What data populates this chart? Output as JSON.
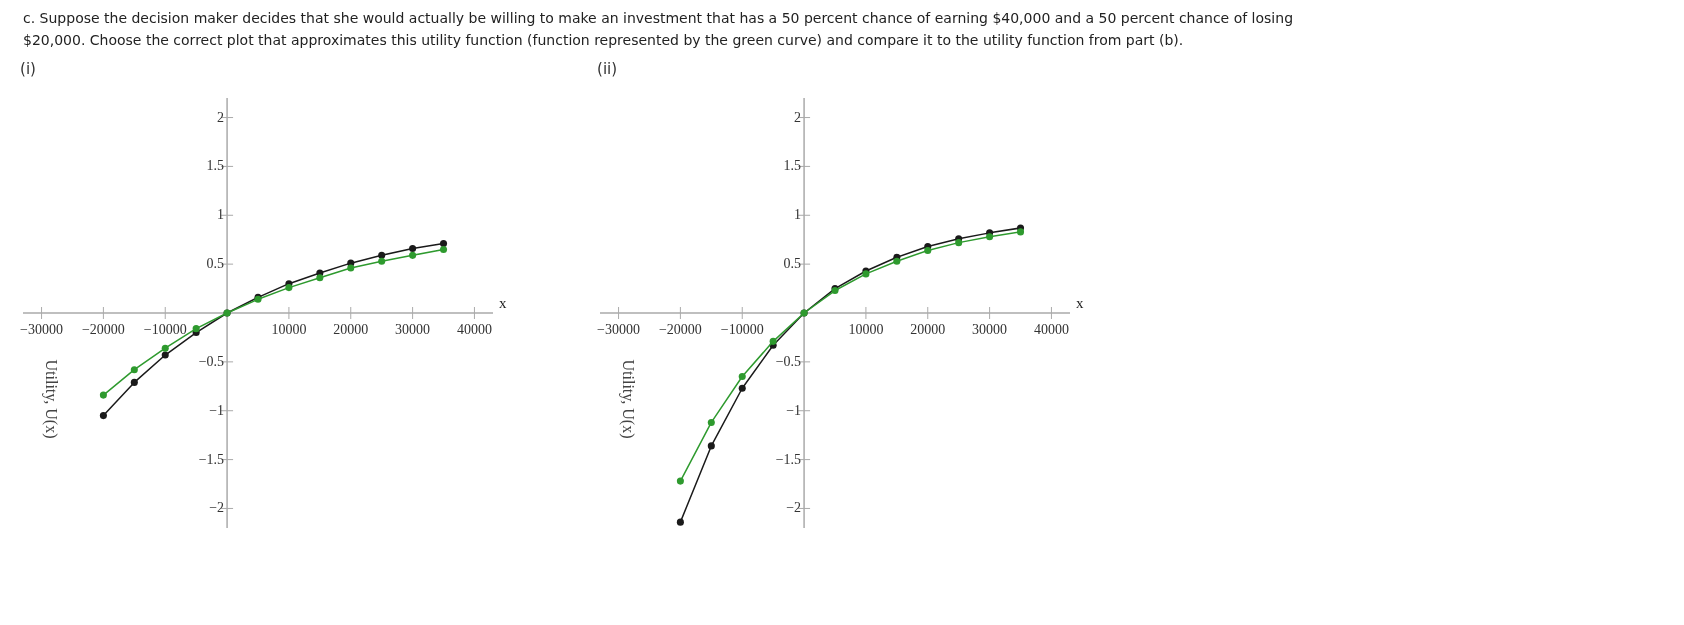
{
  "chart_data": [
    {
      "type": "line",
      "title": "(i)",
      "annotations": [
        "c. Suppose the decision maker decides that she would actually be willing to make an investment that has a 50 percent chance of earning $40,000 and a 50 percent chance of losing",
        "$20,000. Choose the correct plot that approximates this utility function (function represented by the green curve) and compare it to the utility function from part (b)."
      ],
      "xlabel": "x",
      "ylabel": "Utility, U(x)",
      "marker": "circle",
      "grid": false,
      "x": [
        -20000,
        -15000,
        -10000,
        -5000,
        0,
        5000,
        10000,
        15000,
        20000,
        25000,
        30000,
        35000
      ],
      "series": [
        {
          "color": "#1a1a1a",
          "values": [
            -1.05,
            -0.71,
            -0.43,
            -0.2,
            0,
            0.16,
            0.3,
            0.41,
            0.51,
            0.59,
            0.66,
            0.71
          ]
        },
        {
          "color": "#2e9a2e",
          "values": [
            -0.84,
            -0.58,
            -0.36,
            -0.16,
            0,
            0.14,
            0.26,
            0.36,
            0.46,
            0.53,
            0.59,
            0.65
          ]
        }
      ],
      "xlim": [
        -33000,
        43000
      ],
      "xticks": [
        -30000,
        -20000,
        -10000,
        10000,
        20000,
        30000,
        40000
      ],
      "ylim": [
        -2.2,
        2.2
      ],
      "yticks": [
        -2,
        -1.5,
        -1,
        -0.5,
        0.5,
        1,
        1.5,
        2
      ]
    },
    {
      "type": "line",
      "title": "(ii)",
      "xlabel": "x",
      "ylabel": "Utility, U(x)",
      "marker": "circle",
      "grid": false,
      "x": [
        -20000,
        -15000,
        -10000,
        -5000,
        0,
        5000,
        10000,
        15000,
        20000,
        25000,
        30000,
        35000
      ],
      "series": [
        {
          "color": "#1a1a1a",
          "values": [
            -2.14,
            -1.36,
            -0.77,
            -0.33,
            0,
            0.25,
            0.43,
            0.57,
            0.68,
            0.76,
            0.82,
            0.87
          ]
        },
        {
          "color": "#2e9a2e",
          "values": [
            -1.72,
            -1.12,
            -0.65,
            -0.29,
            0,
            0.23,
            0.4,
            0.53,
            0.64,
            0.72,
            0.78,
            0.83
          ]
        }
      ],
      "xlim": [
        -33000,
        43000
      ],
      "xticks": [
        -30000,
        -20000,
        -10000,
        10000,
        20000,
        30000,
        40000
      ],
      "ylim": [
        -2.2,
        2.2
      ],
      "yticks": [
        -2,
        -1.5,
        -1,
        -0.5,
        0.5,
        1,
        1.5,
        2
      ]
    }
  ]
}
